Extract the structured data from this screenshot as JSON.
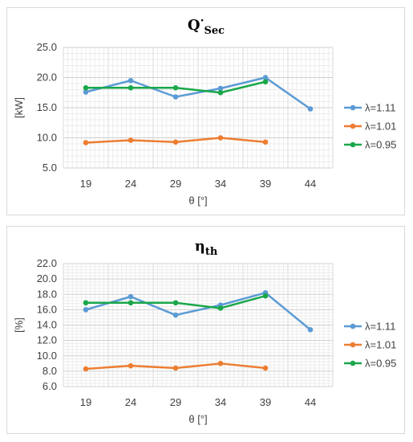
{
  "chart_data": [
    {
      "type": "line",
      "title": "Q",
      "title_superscript": "·",
      "title_subscript": "Sec",
      "xlabel": "θ [°]",
      "ylabel": "[kW]",
      "categories": [
        "19",
        "24",
        "29",
        "34",
        "39",
        "44"
      ],
      "ylim": [
        5.0,
        25.0
      ],
      "yticks": [
        "5.0",
        "10.0",
        "15.0",
        "20.0",
        "25.0"
      ],
      "ytick_values": [
        5,
        10,
        15,
        20,
        25
      ],
      "grid": true,
      "legend": "right",
      "series": [
        {
          "name": "λ=1.11",
          "color": "#5b9bd5",
          "values": [
            17.6,
            19.5,
            16.8,
            18.2,
            20.0,
            14.8
          ]
        },
        {
          "name": "λ=1.01",
          "color": "#ed7d31",
          "values": [
            9.2,
            9.6,
            9.3,
            10.0,
            9.3,
            null
          ]
        },
        {
          "name": "λ=0.95",
          "color": "#1aa74b",
          "values": [
            18.3,
            18.3,
            18.3,
            17.5,
            19.3,
            null
          ]
        }
      ]
    },
    {
      "type": "line",
      "title": "η",
      "title_subscript": "th",
      "xlabel": "θ [°]",
      "ylabel": "[%]",
      "categories": [
        "19",
        "24",
        "29",
        "34",
        "39",
        "44"
      ],
      "ylim": [
        6.0,
        22.0
      ],
      "yticks": [
        "6.0",
        "8.0",
        "10.0",
        "12.0",
        "14.0",
        "16.0",
        "18.0",
        "20.0",
        "22.0"
      ],
      "ytick_values": [
        6,
        8,
        10,
        12,
        14,
        16,
        18,
        20,
        22
      ],
      "grid": true,
      "legend": "right",
      "series": [
        {
          "name": "λ=1.11",
          "color": "#5b9bd5",
          "values": [
            16.0,
            17.7,
            15.3,
            16.6,
            18.2,
            13.4
          ]
        },
        {
          "name": "λ=1.01",
          "color": "#ed7d31",
          "values": [
            8.3,
            8.7,
            8.4,
            9.0,
            8.4,
            null
          ]
        },
        {
          "name": "λ=0.95",
          "color": "#1aa74b",
          "values": [
            16.9,
            16.9,
            16.9,
            16.2,
            17.8,
            null
          ]
        }
      ]
    }
  ]
}
